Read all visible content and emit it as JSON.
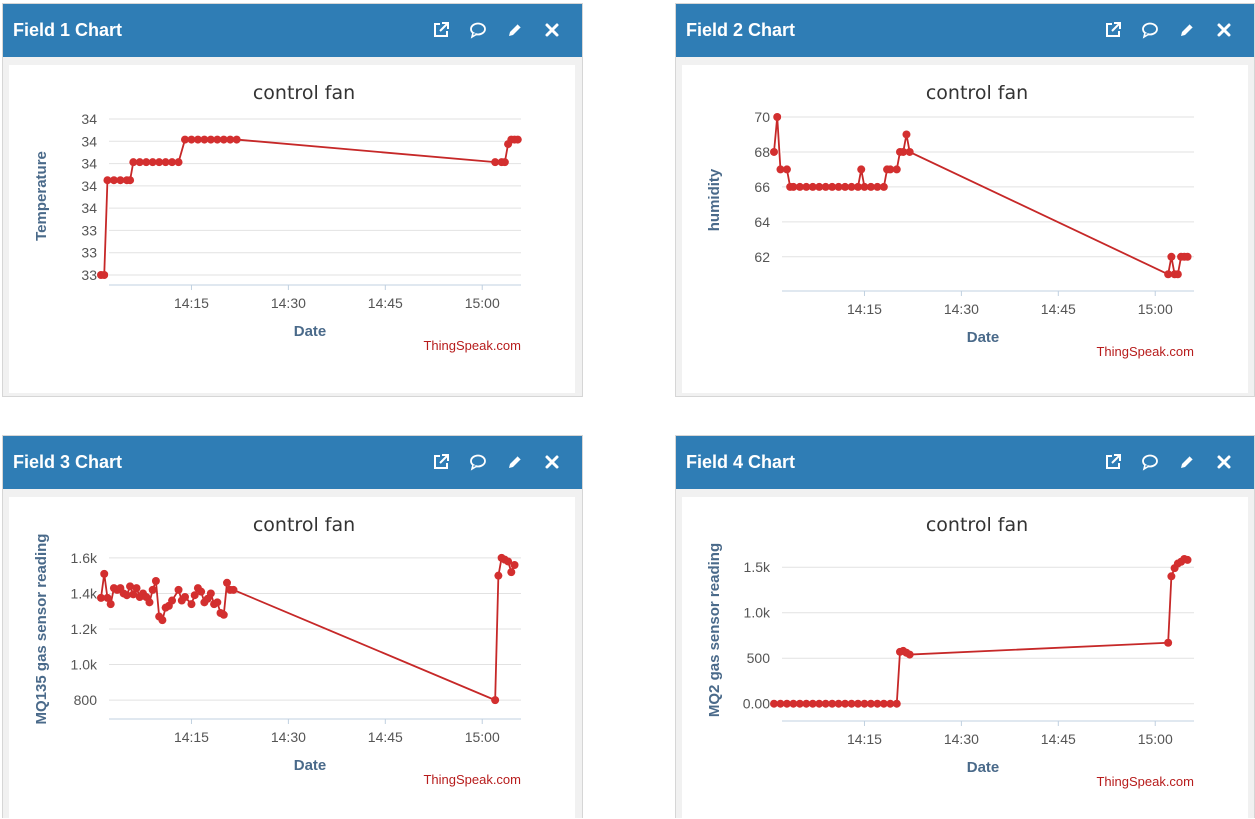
{
  "panels": [
    {
      "title": "Field 1 Chart",
      "chart_data": {
        "type": "line",
        "title": "control fan",
        "xlabel": "Date",
        "ylabel": "Temperature",
        "credit": "ThingSpeak.com",
        "x_range": [
          "14:01",
          "15:06"
        ],
        "xticks": [
          "14:15",
          "14:30",
          "14:45",
          "15:00"
        ],
        "yticks": [
          "33",
          "33",
          "33",
          "34",
          "34",
          "34",
          "34",
          "34"
        ],
        "ylim": [
          0,
          7
        ],
        "tick_note": "tick labels printed as rounded integers",
        "series": [
          {
            "color": "#d32f2f",
            "points": [
              [
                "14:01",
                0
              ],
              [
                "14:01.5",
                0
              ],
              [
                "14:02",
                4.2
              ],
              [
                "14:03",
                4.2
              ],
              [
                "14:04",
                4.2
              ],
              [
                "14:05",
                4.2
              ],
              [
                "14:05.5",
                4.2
              ],
              [
                "14:06",
                5
              ],
              [
                "14:07",
                5
              ],
              [
                "14:08",
                5
              ],
              [
                "14:09",
                5
              ],
              [
                "14:10",
                5
              ],
              [
                "14:11",
                5
              ],
              [
                "14:12",
                5
              ],
              [
                "14:13",
                5
              ],
              [
                "14:14",
                6
              ],
              [
                "14:15",
                6
              ],
              [
                "14:16",
                6
              ],
              [
                "14:17",
                6
              ],
              [
                "14:18",
                6
              ],
              [
                "14:19",
                6
              ],
              [
                "14:20",
                6
              ],
              [
                "14:21",
                6
              ],
              [
                "14:22",
                6
              ],
              [
                "15:02",
                5
              ],
              [
                "15:03",
                5
              ],
              [
                "15:03.5",
                5
              ],
              [
                "15:04",
                5.8
              ],
              [
                "15:04.5",
                6
              ],
              [
                "15:05",
                6
              ],
              [
                "15:05.5",
                6
              ]
            ]
          }
        ]
      }
    },
    {
      "title": "Field 2 Chart",
      "chart_data": {
        "type": "line",
        "title": "control fan",
        "xlabel": "Date",
        "ylabel": "humidity",
        "credit": "ThingSpeak.com",
        "x_range": [
          "14:01",
          "15:06"
        ],
        "xticks": [
          "14:15",
          "14:30",
          "14:45",
          "15:00"
        ],
        "yticks": [
          "62",
          "64",
          "66",
          "68",
          "70"
        ],
        "ylim": [
          60.5,
          70
        ],
        "series": [
          {
            "color": "#d32f2f",
            "points": [
              [
                "14:01",
                68
              ],
              [
                "14:01.5",
                70
              ],
              [
                "14:02",
                67
              ],
              [
                "14:03",
                67
              ],
              [
                "14:03.5",
                66
              ],
              [
                "14:04",
                66
              ],
              [
                "14:05",
                66
              ],
              [
                "14:06",
                66
              ],
              [
                "14:07",
                66
              ],
              [
                "14:08",
                66
              ],
              [
                "14:09",
                66
              ],
              [
                "14:10",
                66
              ],
              [
                "14:11",
                66
              ],
              [
                "14:12",
                66
              ],
              [
                "14:13",
                66
              ],
              [
                "14:14",
                66
              ],
              [
                "14:14.5",
                67
              ],
              [
                "14:15",
                66
              ],
              [
                "14:16",
                66
              ],
              [
                "14:17",
                66
              ],
              [
                "14:18",
                66
              ],
              [
                "14:18.5",
                67
              ],
              [
                "14:19",
                67
              ],
              [
                "14:20",
                67
              ],
              [
                "14:20.5",
                68
              ],
              [
                "14:21",
                68
              ],
              [
                "14:21.5",
                69
              ],
              [
                "14:22",
                68
              ],
              [
                "15:02",
                61
              ],
              [
                "15:02.5",
                62
              ],
              [
                "15:03",
                61
              ],
              [
                "15:03.5",
                61
              ],
              [
                "15:04",
                62
              ],
              [
                "15:04.5",
                62
              ],
              [
                "15:05",
                62
              ]
            ]
          }
        ]
      }
    },
    {
      "title": "Field 3 Chart",
      "chart_data": {
        "type": "line",
        "title": "control fan",
        "xlabel": "Date",
        "ylabel": "MQ135 gas sensor reading",
        "credit": "ThingSpeak.com",
        "x_range": [
          "14:01",
          "15:06"
        ],
        "xticks": [
          "14:15",
          "14:30",
          "14:45",
          "15:00"
        ],
        "yticks": [
          "800",
          "1.0k",
          "1.2k",
          "1.4k",
          "1.6k"
        ],
        "ylim": [
          750,
          1650
        ],
        "series": [
          {
            "color": "#d32f2f",
            "points": [
              [
                "14:01",
                1375
              ],
              [
                "14:01.5",
                1510
              ],
              [
                "14:02",
                1375
              ],
              [
                "14:02.5",
                1340
              ],
              [
                "14:03",
                1430
              ],
              [
                "14:03.5",
                1420
              ],
              [
                "14:04",
                1430
              ],
              [
                "14:04.5",
                1400
              ],
              [
                "14:05",
                1390
              ],
              [
                "14:05.5",
                1440
              ],
              [
                "14:06",
                1395
              ],
              [
                "14:06.5",
                1430
              ],
              [
                "14:07",
                1380
              ],
              [
                "14:07.5",
                1400
              ],
              [
                "14:08",
                1380
              ],
              [
                "14:08.5",
                1350
              ],
              [
                "14:09",
                1420
              ],
              [
                "14:09.5",
                1470
              ],
              [
                "14:10",
                1270
              ],
              [
                "14:10.5",
                1250
              ],
              [
                "14:11",
                1320
              ],
              [
                "14:11.5",
                1330
              ],
              [
                "14:12",
                1360
              ],
              [
                "14:13",
                1420
              ],
              [
                "14:13.5",
                1360
              ],
              [
                "14:14",
                1380
              ],
              [
                "14:15",
                1340
              ],
              [
                "14:15.5",
                1390
              ],
              [
                "14:16",
                1430
              ],
              [
                "14:16.5",
                1410
              ],
              [
                "14:17",
                1350
              ],
              [
                "14:17.5",
                1370
              ],
              [
                "14:18",
                1400
              ],
              [
                "14:18.5",
                1340
              ],
              [
                "14:19",
                1350
              ],
              [
                "14:19.5",
                1290
              ],
              [
                "14:20",
                1280
              ],
              [
                "14:20.5",
                1460
              ],
              [
                "14:21",
                1420
              ],
              [
                "14:21.5",
                1420
              ],
              [
                "15:02",
                800
              ],
              [
                "15:02.5",
                1500
              ],
              [
                "15:03",
                1600
              ],
              [
                "15:03.5",
                1590
              ],
              [
                "15:04",
                1580
              ],
              [
                "15:04.5",
                1520
              ],
              [
                "15:05",
                1560
              ]
            ]
          }
        ]
      }
    },
    {
      "title": "Field 4 Chart",
      "chart_data": {
        "type": "line",
        "title": "control fan",
        "xlabel": "Date",
        "ylabel": "MQ2 gas sensor reading",
        "credit": "ThingSpeak.com",
        "x_range": [
          "14:01",
          "15:06"
        ],
        "xticks": [
          "14:15",
          "14:30",
          "14:45",
          "15:00"
        ],
        "yticks": [
          "0.00",
          "500",
          "1.0k",
          "1.5k"
        ],
        "ylim": [
          -80,
          1700
        ],
        "series": [
          {
            "color": "#d32f2f",
            "points": [
              [
                "14:01",
                0
              ],
              [
                "14:02",
                0
              ],
              [
                "14:03",
                0
              ],
              [
                "14:04",
                0
              ],
              [
                "14:05",
                0
              ],
              [
                "14:06",
                0
              ],
              [
                "14:07",
                0
              ],
              [
                "14:08",
                0
              ],
              [
                "14:09",
                0
              ],
              [
                "14:10",
                0
              ],
              [
                "14:11",
                0
              ],
              [
                "14:12",
                0
              ],
              [
                "14:13",
                0
              ],
              [
                "14:14",
                0
              ],
              [
                "14:15",
                0
              ],
              [
                "14:16",
                0
              ],
              [
                "14:17",
                0
              ],
              [
                "14:18",
                0
              ],
              [
                "14:19",
                0
              ],
              [
                "14:20",
                0
              ],
              [
                "14:20.5",
                570
              ],
              [
                "14:21",
                580
              ],
              [
                "14:21.5",
                560
              ],
              [
                "14:22",
                540
              ],
              [
                "15:02",
                670
              ],
              [
                "15:02.5",
                1400
              ],
              [
                "15:03",
                1490
              ],
              [
                "15:03.5",
                1540
              ],
              [
                "15:04",
                1560
              ],
              [
                "15:04.5",
                1590
              ],
              [
                "15:05",
                1580
              ]
            ]
          }
        ]
      }
    }
  ],
  "icons": [
    "external-link-icon",
    "comment-icon",
    "pencil-icon",
    "close-icon"
  ]
}
